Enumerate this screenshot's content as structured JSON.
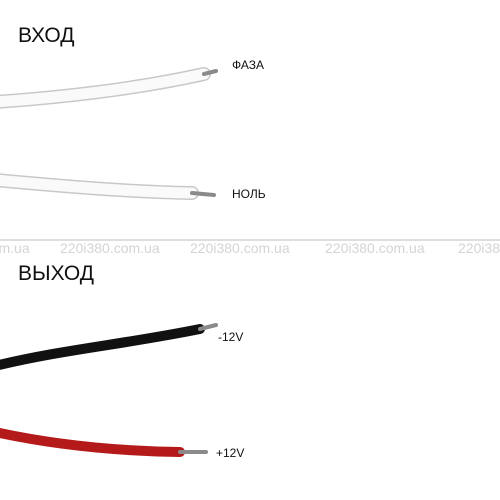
{
  "input": {
    "title": "ВХОД",
    "wires": [
      {
        "label": "ФАЗА"
      },
      {
        "label": "НОЛЬ"
      }
    ]
  },
  "output": {
    "title": "ВЫХОД",
    "wires": [
      {
        "label": "-12V"
      },
      {
        "label": "+12V"
      }
    ]
  },
  "watermark": "220i380.com.ua"
}
